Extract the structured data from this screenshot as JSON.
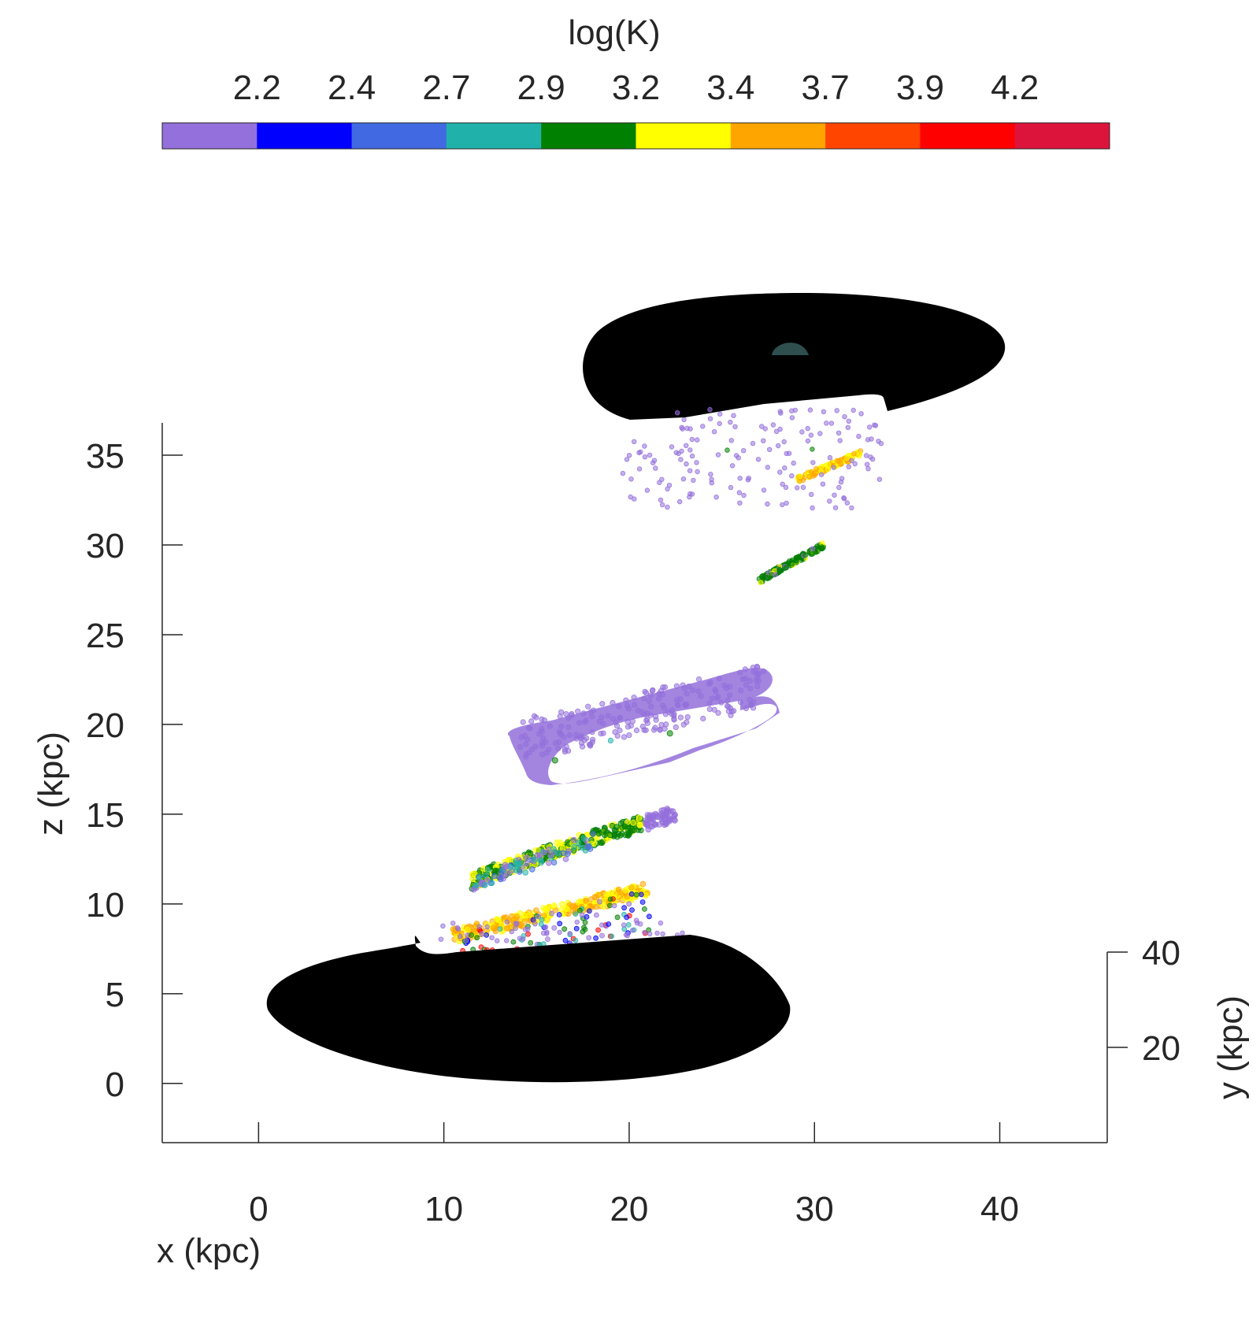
{
  "chart_data": {
    "type": "scatter",
    "title": "",
    "colorbar": {
      "label": "log(K)",
      "ticks": [
        "2.2",
        "2.4",
        "2.7",
        "2.9",
        "3.2",
        "3.4",
        "3.7",
        "3.9",
        "4.2"
      ],
      "colors": [
        "#9370DB",
        "#0000FF",
        "#4169E1",
        "#20B2AA",
        "#008000",
        "#FFFF00",
        "#FFA500",
        "#FF4500",
        "#FF0000",
        "#DC143C"
      ]
    },
    "xlabel": "x (kpc)",
    "ylabel": "y (kpc)",
    "zlabel": "z (kpc)",
    "xticks": [
      0,
      10,
      20,
      30,
      40
    ],
    "yticks": [
      20,
      40
    ],
    "zticks": [
      0,
      5,
      10,
      15,
      20,
      25,
      30,
      35
    ],
    "xlim": [
      -5.2,
      45.8
    ],
    "zlim": [
      -3.3,
      36.8
    ],
    "grid": false,
    "disks": [
      {
        "name": "lower",
        "color": "#000000",
        "center_x": 14.5,
        "center_z": 4.0
      },
      {
        "name": "upper",
        "color": "#000000",
        "center_x": 28.5,
        "center_z": 40.4
      }
    ],
    "core_color": "#2F4F4F",
    "streams": [
      {
        "name": "stream-1",
        "x_range": [
          10.5,
          21.0
        ],
        "z_range": [
          8.2,
          10.8
        ],
        "dominant": [
          "#FFA500",
          "#FFFF00"
        ],
        "mixed": [
          "#9370DB",
          "#20B2AA",
          "#008000",
          "#FF0000",
          "#0000FF"
        ]
      },
      {
        "name": "stream-2",
        "x_range": [
          11.5,
          22.5
        ],
        "z_range": [
          11.2,
          15.0
        ],
        "dominant": [
          "#FFFF00",
          "#008000"
        ],
        "mixed": [
          "#4169E1",
          "#20B2AA",
          "#9370DB"
        ]
      },
      {
        "name": "stream-3",
        "x_range": [
          14.0,
          28.0
        ],
        "z_range": [
          17.2,
          23.6
        ],
        "dominant": [
          "#9370DB"
        ],
        "mixed": [
          "#008000",
          "#20B2AA"
        ]
      },
      {
        "name": "stream-4",
        "x_range": [
          27.0,
          30.5
        ],
        "z_range": [
          28.0,
          30.0
        ],
        "dominant": [
          "#008000"
        ],
        "mixed": [
          "#9370DB",
          "#FFFF00"
        ]
      },
      {
        "name": "stream-5",
        "x_range": [
          29.0,
          32.5
        ],
        "z_range": [
          33.6,
          35.1
        ],
        "dominant": [
          "#FFA500",
          "#FFFF00"
        ],
        "mixed": [
          "#9370DB"
        ]
      },
      {
        "name": "scatter-cloud",
        "x_range": [
          19.0,
          33.5
        ],
        "z_range": [
          32.0,
          38.0
        ],
        "dominant": [
          "#9370DB"
        ],
        "mixed": [
          "#008000"
        ]
      }
    ]
  }
}
